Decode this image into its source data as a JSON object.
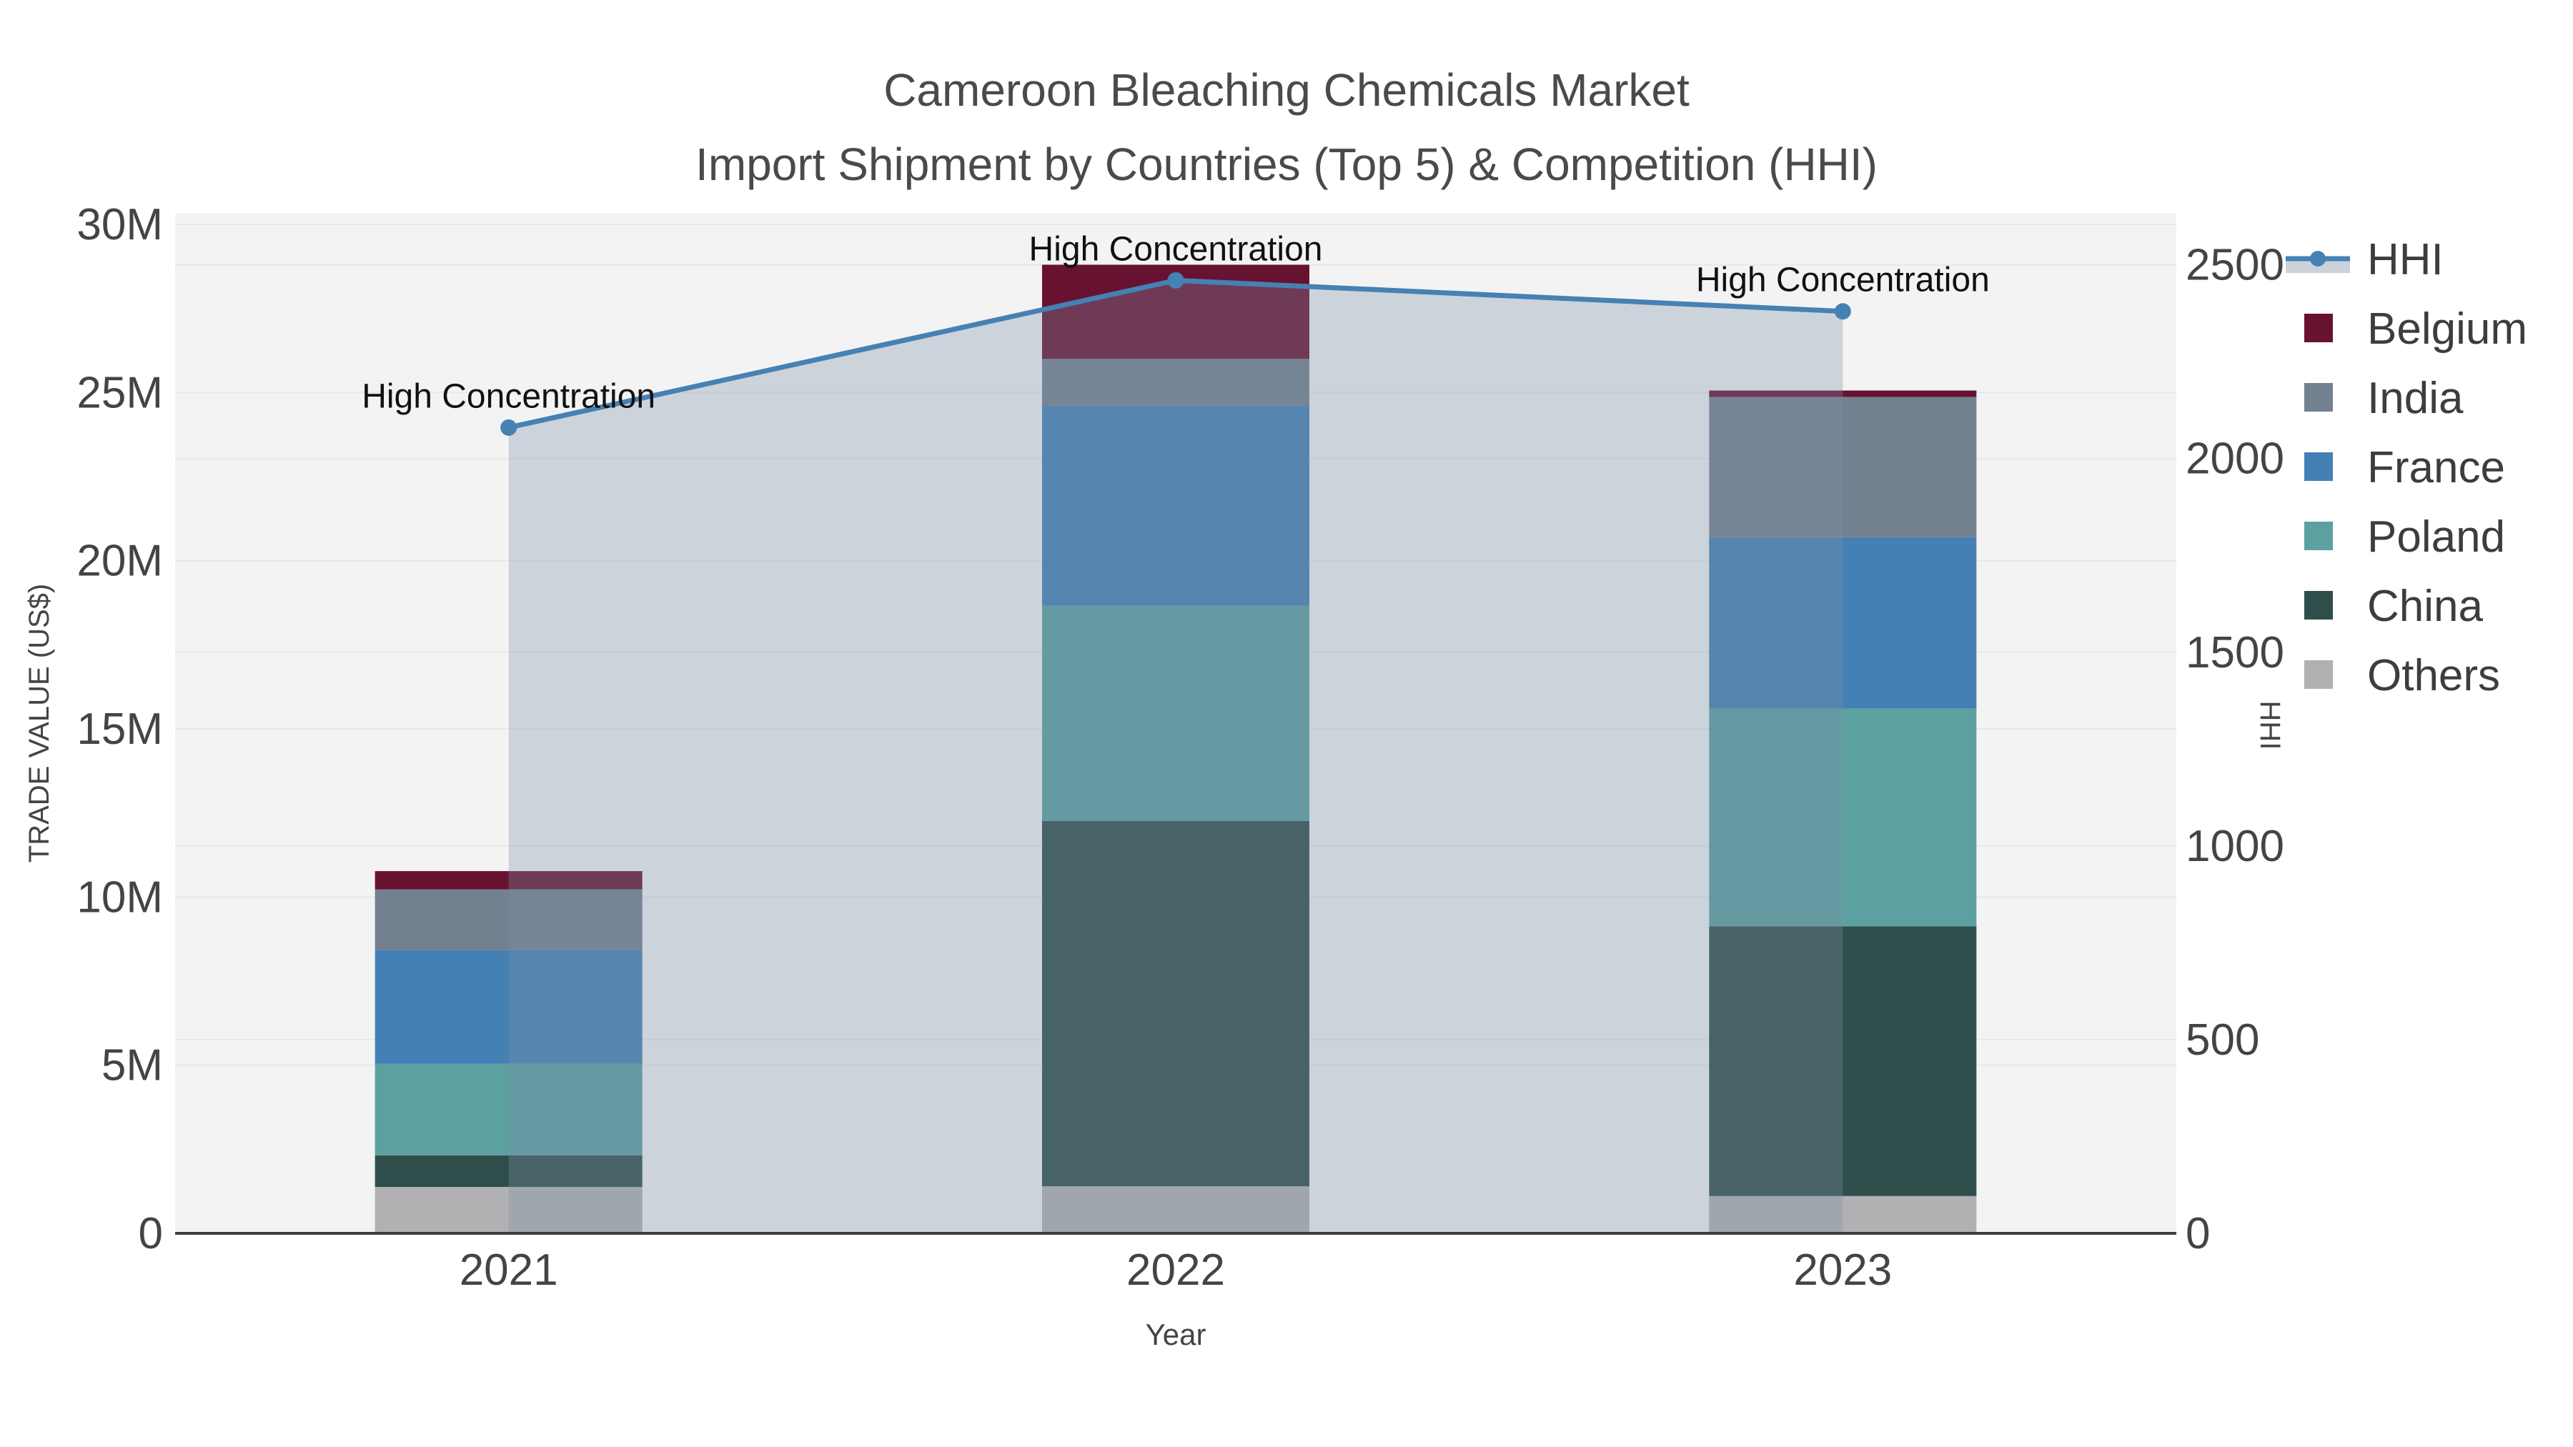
{
  "title": {
    "line1": "Cameroon Bleaching Chemicals Market",
    "line2": "Import Shipment by Countries (Top 5) & Competition (HHI)"
  },
  "chart_data": {
    "type": "bar+line",
    "title": "Cameroon Bleaching Chemicals Market",
    "subtitle": "Import Shipment by Countries (Top 5) & Competition (HHI)",
    "categories": [
      "2021",
      "2022",
      "2023"
    ],
    "values_unit": "million US$",
    "stack_order_bottom_to_top": [
      "Others",
      "China",
      "Poland",
      "France",
      "India",
      "Belgium"
    ],
    "series": [
      {
        "name": "Others",
        "color": "#B1B1B3",
        "values": [
          1.38,
          1.4,
          1.11
        ]
      },
      {
        "name": "China",
        "color": "#2F4E4B",
        "values": [
          0.94,
          10.86,
          8.02
        ]
      },
      {
        "name": "Poland",
        "color": "#5CA0A1",
        "values": [
          2.72,
          6.4,
          6.47
        ]
      },
      {
        "name": "France",
        "color": "#4480B4",
        "values": [
          3.39,
          5.94,
          5.1
        ]
      },
      {
        "name": "India",
        "color": "#73808F",
        "values": [
          1.8,
          1.4,
          4.17
        ]
      },
      {
        "name": "Belgium",
        "color": "#681232",
        "values": [
          0.54,
          2.8,
          0.19
        ]
      }
    ],
    "bar_totals": [
      10.77,
      28.8,
      25.06
    ],
    "line_series": {
      "name": "HHI",
      "axis": "right",
      "values": [
        2080,
        2460,
        2380
      ],
      "color": "#4681B4",
      "fill_color": "rgba(125,143,166,0.32)"
    },
    "xlabel": "Year",
    "ylabel": "TRADE VALUE (US$)",
    "y2label": "HHI",
    "ylim": [
      0,
      30.34
    ],
    "y2lim": [
      0,
      2634
    ],
    "y_ticks": [
      "0",
      "5M",
      "10M",
      "15M",
      "20M",
      "25M",
      "30M"
    ],
    "y_tick_values": [
      0,
      5,
      10,
      15,
      20,
      25,
      30
    ],
    "y2_ticks": [
      "0",
      "500",
      "1000",
      "1500",
      "2000",
      "2500"
    ],
    "y2_tick_values": [
      0,
      500,
      1000,
      1500,
      2000,
      2500
    ],
    "grid": true,
    "legend_position": "right",
    "annotation_text": "High Concentration"
  },
  "legend": {
    "items": [
      "HHI",
      "Belgium",
      "India",
      "France",
      "Poland",
      "China",
      "Others"
    ]
  },
  "colors": {
    "hhi_line": "#4681B4",
    "hhi_fill": "rgba(125,143,166,0.32)",
    "plot_bg": "#F3F3F3",
    "grid": "#E8E8E8",
    "axis_line": "#3D3D3D",
    "tick_text": "#444444",
    "title_text": "#4A4A4A",
    "annotation_text": "#111111",
    "legend_text": "#3D3D3D",
    "hhi_legend_band": "#CCD2DA"
  }
}
